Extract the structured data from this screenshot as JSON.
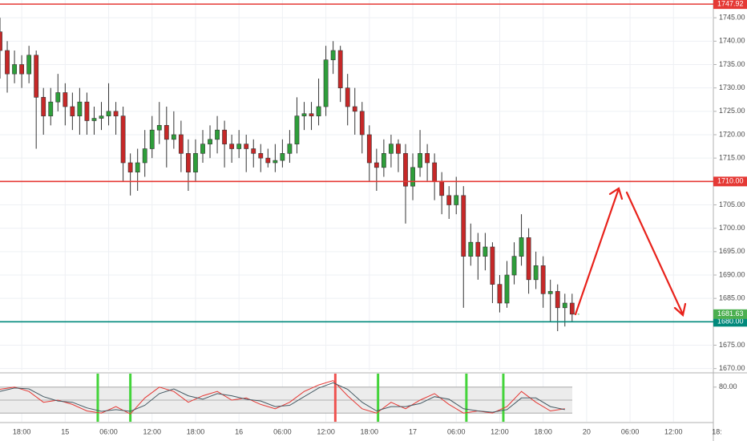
{
  "chart_data": {
    "type": "candlestick",
    "up_color": "#2e9e3a",
    "down_color": "#c62828",
    "x": [
      0,
      1,
      2,
      3,
      4,
      5,
      6,
      7,
      8,
      9,
      10,
      11,
      12,
      13,
      14,
      15,
      16,
      17,
      18,
      19,
      20,
      21,
      22,
      23,
      24,
      25,
      26,
      27,
      28,
      29,
      30,
      31,
      32,
      33,
      34,
      35,
      36,
      37,
      38,
      39,
      40,
      41,
      42,
      43,
      44,
      45,
      46,
      47,
      48,
      49,
      50,
      51,
      52,
      53,
      54,
      55,
      56,
      57,
      58,
      59,
      60,
      61,
      62,
      63,
      64,
      65,
      66,
      67,
      68,
      69,
      70,
      71,
      72,
      73,
      74,
      75,
      76,
      77,
      78,
      79
    ],
    "candles": [
      [
        1742,
        1745,
        1732,
        1738
      ],
      [
        1738,
        1740,
        1729,
        1733
      ],
      [
        1733,
        1738,
        1731,
        1735
      ],
      [
        1735,
        1737,
        1730,
        1733
      ],
      [
        1733,
        1739,
        1731,
        1737
      ],
      [
        1737,
        1738,
        1717,
        1728
      ],
      [
        1728,
        1730,
        1720,
        1724
      ],
      [
        1724,
        1730,
        1722,
        1727
      ],
      [
        1727,
        1733,
        1725,
        1729
      ],
      [
        1729,
        1731,
        1722,
        1726
      ],
      [
        1726,
        1729,
        1721,
        1724
      ],
      [
        1724,
        1730,
        1720,
        1727
      ],
      [
        1727,
        1729,
        1720,
        1723
      ],
      [
        1723,
        1726,
        1720,
        1723.5
      ],
      [
        1723.5,
        1727,
        1721,
        1724
      ],
      [
        1724,
        1731,
        1722,
        1725
      ],
      [
        1725,
        1727,
        1720,
        1724
      ],
      [
        1724,
        1726,
        1710,
        1714
      ],
      [
        1714,
        1716,
        1707,
        1712
      ],
      [
        1712,
        1717,
        1708,
        1714
      ],
      [
        1714,
        1721,
        1711,
        1717
      ],
      [
        1717,
        1724,
        1715,
        1721
      ],
      [
        1721,
        1727,
        1718,
        1722
      ],
      [
        1722,
        1726,
        1713,
        1719
      ],
      [
        1719,
        1725,
        1717,
        1720
      ],
      [
        1720,
        1723,
        1712,
        1716
      ],
      [
        1716,
        1719,
        1708,
        1712
      ],
      [
        1712,
        1719,
        1710,
        1716
      ],
      [
        1716,
        1721,
        1714,
        1718
      ],
      [
        1718,
        1722,
        1715,
        1719
      ],
      [
        1719,
        1724,
        1716,
        1721
      ],
      [
        1721,
        1723,
        1713,
        1718
      ],
      [
        1718,
        1720,
        1714,
        1717
      ],
      [
        1717,
        1721,
        1715,
        1718
      ],
      [
        1718,
        1720,
        1712,
        1717
      ],
      [
        1717,
        1719,
        1713,
        1716
      ],
      [
        1716,
        1718,
        1712,
        1715
      ],
      [
        1715,
        1717,
        1713,
        1714
      ],
      [
        1714,
        1718,
        1712,
        1714.5
      ],
      [
        1714.5,
        1719,
        1713,
        1716
      ],
      [
        1716,
        1721,
        1714,
        1718
      ],
      [
        1718,
        1728,
        1716,
        1724
      ],
      [
        1724,
        1727,
        1721,
        1724.5
      ],
      [
        1724.5,
        1727,
        1721,
        1724
      ],
      [
        1724,
        1732,
        1722,
        1726
      ],
      [
        1726,
        1739,
        1724,
        1736
      ],
      [
        1736,
        1740,
        1733,
        1738
      ],
      [
        1738,
        1739,
        1727,
        1730
      ],
      [
        1730,
        1733,
        1722,
        1726
      ],
      [
        1726,
        1730,
        1720,
        1725
      ],
      [
        1725,
        1727,
        1716,
        1720
      ],
      [
        1720,
        1722,
        1710,
        1714
      ],
      [
        1714,
        1717,
        1708,
        1713
      ],
      [
        1713,
        1719,
        1711,
        1716
      ],
      [
        1716,
        1720,
        1713,
        1718
      ],
      [
        1718,
        1719,
        1712,
        1716
      ],
      [
        1716,
        1718,
        1701,
        1709
      ],
      [
        1709,
        1716,
        1706,
        1713
      ],
      [
        1713,
        1721,
        1711,
        1716
      ],
      [
        1716,
        1718,
        1710,
        1714
      ],
      [
        1714,
        1716,
        1706,
        1710
      ],
      [
        1710,
        1712,
        1703,
        1707
      ],
      [
        1707,
        1709,
        1702,
        1705
      ],
      [
        1705,
        1711,
        1703,
        1707
      ],
      [
        1707,
        1709,
        1683,
        1694
      ],
      [
        1694,
        1701,
        1692,
        1697
      ],
      [
        1697,
        1699,
        1689,
        1694
      ],
      [
        1694,
        1699,
        1691,
        1696
      ],
      [
        1696,
        1697,
        1684,
        1688
      ],
      [
        1688,
        1690,
        1682,
        1684
      ],
      [
        1684,
        1693,
        1683,
        1690
      ],
      [
        1690,
        1697,
        1688,
        1694
      ],
      [
        1694,
        1703,
        1692,
        1698
      ],
      [
        1698,
        1700,
        1686,
        1689
      ],
      [
        1689,
        1695,
        1687,
        1692
      ],
      [
        1692,
        1694,
        1683,
        1686
      ],
      [
        1686,
        1689,
        1680,
        1686.5
      ],
      [
        1686.5,
        1688,
        1678,
        1683
      ],
      [
        1683,
        1686,
        1679,
        1684
      ],
      [
        1684,
        1686,
        1680,
        1681.63
      ]
    ],
    "last_price_color": "#4caf50",
    "xlim": [
      0,
      98.5
    ],
    "ylim": [
      1669.6,
      1748.8
    ],
    "grid": true,
    "yticks": [
      {
        "value": 1670,
        "label": "1670.00"
      },
      {
        "value": 1675,
        "label": "1675.00"
      },
      {
        "value": 1680,
        "label": "1680.00"
      },
      {
        "value": 1685,
        "label": "1685.00"
      },
      {
        "value": 1690,
        "label": "1690.00"
      },
      {
        "value": 1695,
        "label": "1695.00"
      },
      {
        "value": 1700,
        "label": "1700.00"
      },
      {
        "value": 1705,
        "label": "1705.00"
      },
      {
        "value": 1710,
        "label": "1710.00"
      },
      {
        "value": 1715,
        "label": "1715.00"
      },
      {
        "value": 1720,
        "label": "1720.00"
      },
      {
        "value": 1725,
        "label": "1725.00"
      },
      {
        "value": 1730,
        "label": "1730.00"
      },
      {
        "value": 1735,
        "label": "1735.00"
      },
      {
        "value": 1740,
        "label": "1740.00"
      },
      {
        "value": 1745,
        "label": "1745.00"
      }
    ],
    "xticks": [
      {
        "value": 3,
        "label": "18:00"
      },
      {
        "value": 9,
        "label": "15"
      },
      {
        "value": 15,
        "label": "06:00"
      },
      {
        "value": 21,
        "label": "12:00"
      },
      {
        "value": 27,
        "label": "18:00"
      },
      {
        "value": 33,
        "label": "16"
      },
      {
        "value": 39,
        "label": "06:00"
      },
      {
        "value": 45,
        "label": "12:00"
      },
      {
        "value": 51,
        "label": "18:00"
      },
      {
        "value": 57,
        "label": "17"
      },
      {
        "value": 63,
        "label": "06:00"
      },
      {
        "value": 69,
        "label": "12:00"
      },
      {
        "value": 75,
        "label": "18:00"
      },
      {
        "value": 81,
        "label": "20"
      },
      {
        "value": 87,
        "label": "06:00"
      },
      {
        "value": 93,
        "label": "12:00"
      },
      {
        "value": 99,
        "label": "18:"
      }
    ],
    "hlines": [
      {
        "value": 1747.92,
        "label": "1747.92",
        "color": "#e53935"
      },
      {
        "value": 1710,
        "label": "1710.00",
        "color": "#e53935"
      },
      {
        "value": 1680,
        "label": "1680.00",
        "color": "#00897b"
      }
    ],
    "oscillator": {
      "type": "line",
      "ylim": [
        0,
        100
      ],
      "yticks": [
        {
          "value": 80,
          "label": "80.00"
        }
      ],
      "band": [
        20,
        80
      ],
      "mid": 50,
      "x": [
        0,
        2,
        4,
        6,
        8,
        10,
        12,
        14,
        16,
        18,
        20,
        22,
        24,
        26,
        28,
        30,
        32,
        34,
        36,
        38,
        40,
        42,
        44,
        46,
        48,
        50,
        52,
        54,
        56,
        58,
        60,
        62,
        64,
        66,
        68,
        70,
        72,
        74,
        76,
        78
      ],
      "series": [
        {
          "color": "#e53935",
          "values": [
            75,
            80,
            70,
            45,
            50,
            40,
            25,
            20,
            35,
            18,
            55,
            80,
            70,
            45,
            60,
            70,
            50,
            55,
            40,
            30,
            45,
            70,
            85,
            95,
            60,
            30,
            20,
            45,
            30,
            50,
            65,
            40,
            20,
            25,
            20,
            35,
            70,
            45,
            25,
            30
          ]
        },
        {
          "color": "#455a64",
          "values": [
            70,
            78,
            76,
            58,
            48,
            45,
            32,
            24,
            28,
            24,
            38,
            65,
            76,
            60,
            52,
            65,
            60,
            52,
            48,
            35,
            38,
            58,
            78,
            90,
            75,
            45,
            25,
            35,
            35,
            42,
            58,
            52,
            30,
            25,
            22,
            28,
            55,
            55,
            35,
            28
          ]
        }
      ],
      "signals": [
        {
          "x": 13.5,
          "color": "#43d43a"
        },
        {
          "x": 18,
          "color": "#43d43a"
        },
        {
          "x": 46.3,
          "color": "#ef5350"
        },
        {
          "x": 52.2,
          "color": "#43d43a"
        },
        {
          "x": 64.4,
          "color": "#43d43a"
        },
        {
          "x": 69.5,
          "color": "#43d43a"
        }
      ]
    }
  }
}
